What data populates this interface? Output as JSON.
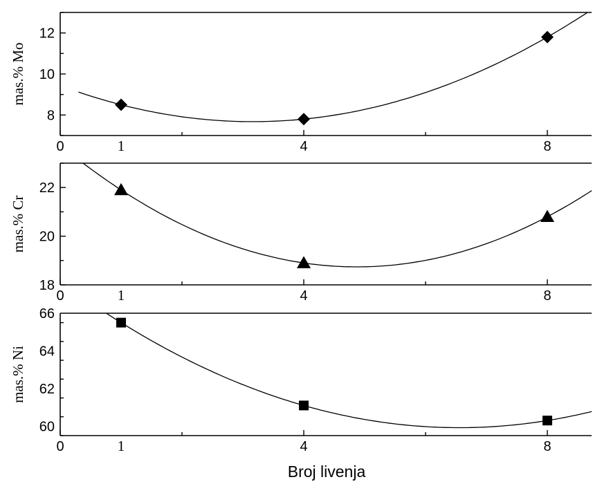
{
  "chart_data": [
    {
      "type": "scatter",
      "panel": "Mo",
      "xlabel": "",
      "ylabel": "mas.% Mo",
      "xlim": [
        0,
        8.75
      ],
      "ylim": [
        7,
        13
      ],
      "y_ticks": [
        8,
        10,
        12
      ],
      "x_ticks": [
        0,
        4,
        8
      ],
      "x_tick_labels": [
        "0",
        "4",
        "8"
      ],
      "extra_x_labels": [
        {
          "x": 1,
          "label": "1"
        }
      ],
      "marker": "diamond",
      "series": [
        {
          "x": [
            1,
            4,
            8
          ],
          "y": [
            8.5,
            7.8,
            11.8
          ]
        }
      ],
      "fit": {
        "type": "quadratic",
        "x_range": [
          0.3,
          8.75
        ],
        "through": [
          [
            1,
            8.5
          ],
          [
            4,
            7.8
          ],
          [
            8,
            11.8
          ]
        ]
      }
    },
    {
      "type": "scatter",
      "panel": "Cr",
      "xlabel": "",
      "ylabel": "mas.% Cr",
      "xlim": [
        0,
        8.75
      ],
      "ylim": [
        18,
        23
      ],
      "y_ticks": [
        18,
        20,
        22
      ],
      "x_ticks": [
        0,
        4,
        8
      ],
      "x_tick_labels": [
        "0",
        "4",
        "8"
      ],
      "extra_x_labels": [
        {
          "x": 1,
          "label": "1"
        }
      ],
      "marker": "triangle",
      "series": [
        {
          "x": [
            1,
            4,
            8
          ],
          "y": [
            21.9,
            18.9,
            20.8
          ]
        }
      ],
      "fit": {
        "type": "quadratic",
        "x_range": [
          0.3,
          8.75
        ],
        "through": [
          [
            1,
            21.9
          ],
          [
            4,
            18.9
          ],
          [
            8,
            20.8
          ]
        ]
      }
    },
    {
      "type": "scatter",
      "panel": "Ni",
      "xlabel": "Broj livenja",
      "ylabel": "mas.% Ni",
      "xlim": [
        0,
        8.75
      ],
      "ylim": [
        59.5,
        66
      ],
      "y_ticks": [
        60,
        62,
        64,
        66
      ],
      "x_ticks": [
        0,
        4,
        8
      ],
      "x_tick_labels": [
        "0",
        "4",
        "8"
      ],
      "extra_x_labels": [
        {
          "x": 1,
          "label": "1"
        }
      ],
      "marker": "square",
      "series": [
        {
          "x": [
            1,
            4,
            8
          ],
          "y": [
            65.5,
            61.1,
            60.3
          ]
        }
      ],
      "fit": {
        "type": "quadratic",
        "x_range": [
          0.75,
          8.75
        ],
        "through": [
          [
            1,
            65.5
          ],
          [
            4,
            61.1
          ],
          [
            8,
            60.3
          ]
        ]
      }
    }
  ],
  "colors": {
    "ink": "#000000",
    "background": "#ffffff"
  }
}
